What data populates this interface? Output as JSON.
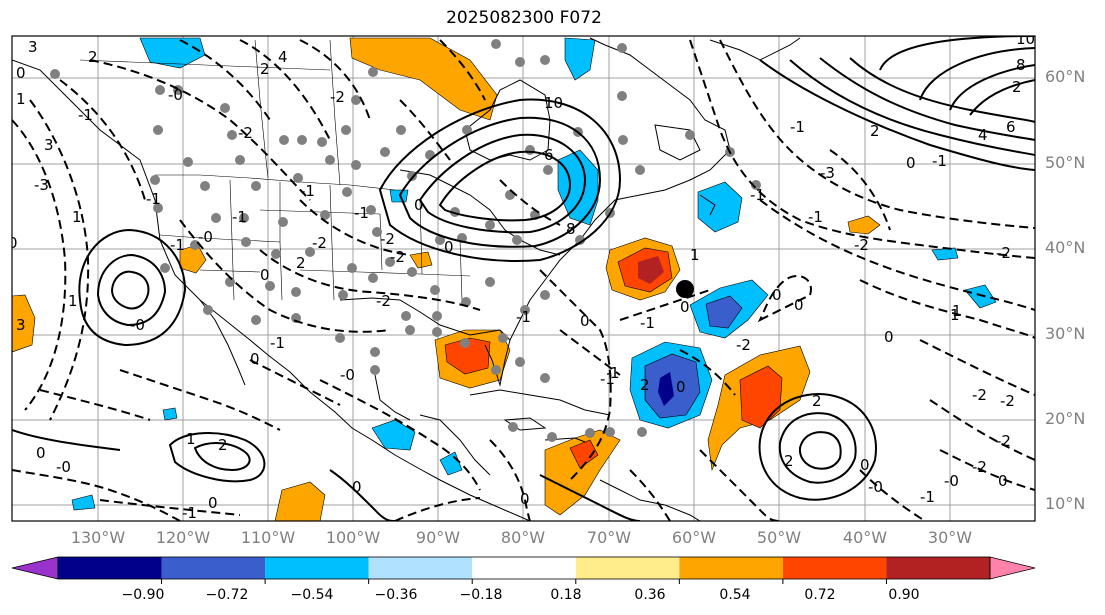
{
  "title": "2025082300 F072",
  "lat_labels": [
    "60°N",
    "50°N",
    "40°N",
    "30°N",
    "20°N",
    "10°N"
  ],
  "lon_labels": [
    "130°W",
    "120°W",
    "110°W",
    "100°W",
    "90°W",
    "80°W",
    "70°W",
    "60°W",
    "50°W",
    "40°W",
    "30°W"
  ],
  "colorbar": {
    "ticks": [
      "−0.90",
      "−0.72",
      "−0.54",
      "−0.36",
      "−0.18",
      "0.18",
      "0.36",
      "0.54",
      "0.72",
      "0.90"
    ],
    "colors": [
      "#9a32cd",
      "#00008b",
      "#3a5fcd",
      "#00bfff",
      "#b0e2ff",
      "#ffffff",
      "#ffec8b",
      "#ffa500",
      "#ff4500",
      "#b22222",
      "#ff82ab"
    ]
  },
  "contour_labels": [
    "3",
    "2",
    "-0",
    "0",
    "1",
    "-1",
    "2",
    "0",
    "3",
    "3",
    "1",
    "-3",
    "1",
    "-1",
    "-2",
    "4",
    "-2",
    "6",
    "8",
    "10",
    "-1",
    "0",
    "4",
    "6",
    "2",
    "-1",
    "-3",
    "-2",
    "0",
    "-1",
    "-2",
    "-2",
    "1",
    "-2",
    "-2",
    "2",
    "2",
    "0",
    "-1",
    "-2",
    "0",
    "-0",
    "-0",
    "0",
    "1",
    "-2",
    "0",
    "0",
    "2",
    "-1",
    "0",
    "1",
    "0",
    "-0",
    "-1",
    "0",
    "0",
    "1",
    "2",
    "0",
    "0",
    "0",
    "-1",
    "-2",
    "2",
    "-1",
    "-2",
    "-0",
    "0",
    "-1",
    "0",
    "0",
    "-2",
    "-1",
    "-0",
    "-1",
    "-2",
    "2",
    "8",
    "10",
    "-1",
    "-1",
    "1",
    "-1",
    "-0",
    "-1"
  ],
  "colors": {
    "positive": "#ffa500",
    "strong_positive": "#ff4500",
    "negative": "#00bfff",
    "strong_negative": "#3a5fcd",
    "stations": "#808080"
  }
}
